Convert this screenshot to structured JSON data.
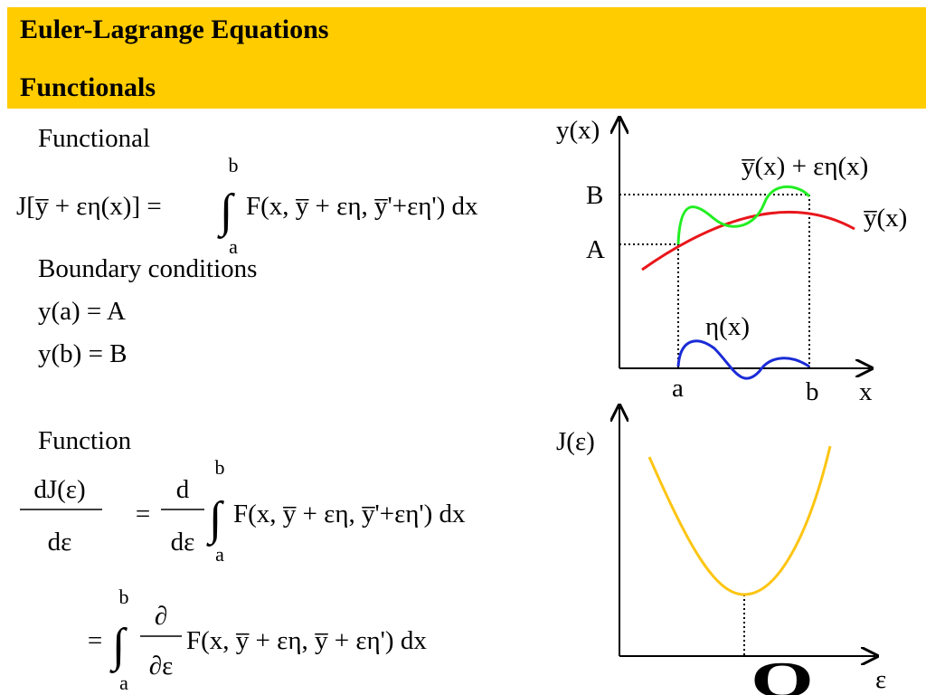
{
  "header": {
    "title": "Euler-Lagrange Equations",
    "subtitle": "Functionals"
  },
  "body": {
    "functional_label": "Functional",
    "boundary_label": "Boundary conditions",
    "conditions": [
      "y(a) = A",
      "y(b) = B"
    ],
    "function_label": "Function"
  },
  "equations": [
    {
      "left": "J[y̅ + εη(x)] =",
      "integral_sign": "∫",
      "upper": "b",
      "lower": "a",
      "integrand": "F(x, y̅ + εη, y̅'+εη') dx"
    },
    {
      "numerator": "dJ(ε)",
      "denominator": "dε",
      "equals": "=",
      "operator_numerator": "d",
      "operator_denominator": "dε",
      "integral_sign": "∫",
      "upper": "b",
      "lower": "a",
      "integrand": "F(x, y̅ + εη, y̅'+εη') dx"
    },
    {
      "equals": "=",
      "integral_sign": "∫",
      "upper": "b",
      "lower": "a",
      "operator_numerator": "∂",
      "operator_denominator": "∂ε",
      "integrand": "F(x, y̅ + εη, y̅ + εη') dx"
    }
  ],
  "graph_top": {
    "y_axis": "y(x)",
    "x_axis": "x",
    "B": "B",
    "A": "A",
    "a": "a",
    "b": "b",
    "varied": "y̅(x) + εη(x)",
    "base": "y̅(x)",
    "eta": "η(x)"
  },
  "graph_bottom": {
    "y_axis": "J(ε)",
    "x_axis": "ε",
    "min_label": "O"
  }
}
